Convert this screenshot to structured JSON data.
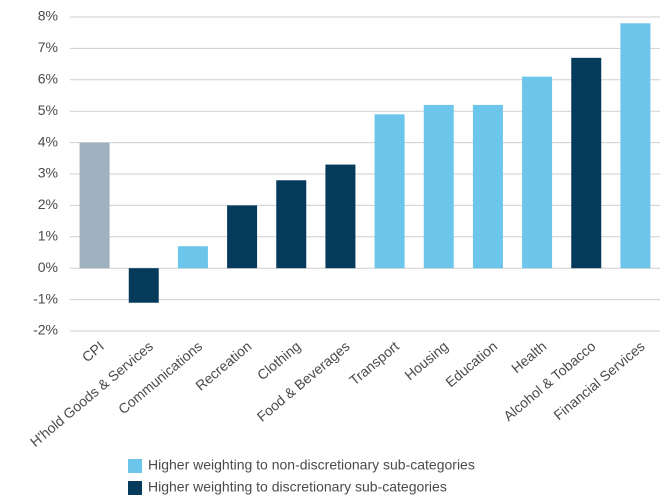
{
  "chart_data": {
    "type": "bar",
    "categories": [
      "CPI",
      "H'hold Goods & Services",
      "Communications",
      "Recreation",
      "Clothing",
      "Food & Beverages",
      "Transport",
      "Housing",
      "Education",
      "Health",
      "Alcohol & Tobacco",
      "Financial Services"
    ],
    "values": [
      4.0,
      -1.1,
      0.7,
      2.0,
      2.8,
      3.3,
      4.9,
      5.2,
      5.2,
      6.1,
      6.7,
      7.8
    ],
    "colors": [
      "#9db2be",
      "#053a5b",
      "#6cc5ea",
      "#053a5b",
      "#053a5b",
      "#053a5b",
      "#6cc5ea",
      "#6cc5ea",
      "#6cc5ea",
      "#6cc5ea",
      "#053a5b",
      "#6cc5ea"
    ],
    "ylim": [
      -2,
      8
    ],
    "yticks": [
      {
        "value": -2,
        "label": "-2%"
      },
      {
        "value": -1,
        "label": "-1%"
      },
      {
        "value": 0,
        "label": "0%"
      },
      {
        "value": 1,
        "label": "1%"
      },
      {
        "value": 2,
        "label": "2%"
      },
      {
        "value": 3,
        "label": "3%"
      },
      {
        "value": 4,
        "label": "4%"
      },
      {
        "value": 5,
        "label": "5%"
      },
      {
        "value": 6,
        "label": "6%"
      },
      {
        "value": 7,
        "label": "7%"
      },
      {
        "value": 8,
        "label": "8%"
      }
    ],
    "grid": true,
    "legend": [
      {
        "name": "Higher weighting to non-discretionary sub-categories",
        "color": "#6cc5ea"
      },
      {
        "name": "Higher weighting to discretionary sub-categories",
        "color": "#053a5b"
      }
    ]
  }
}
